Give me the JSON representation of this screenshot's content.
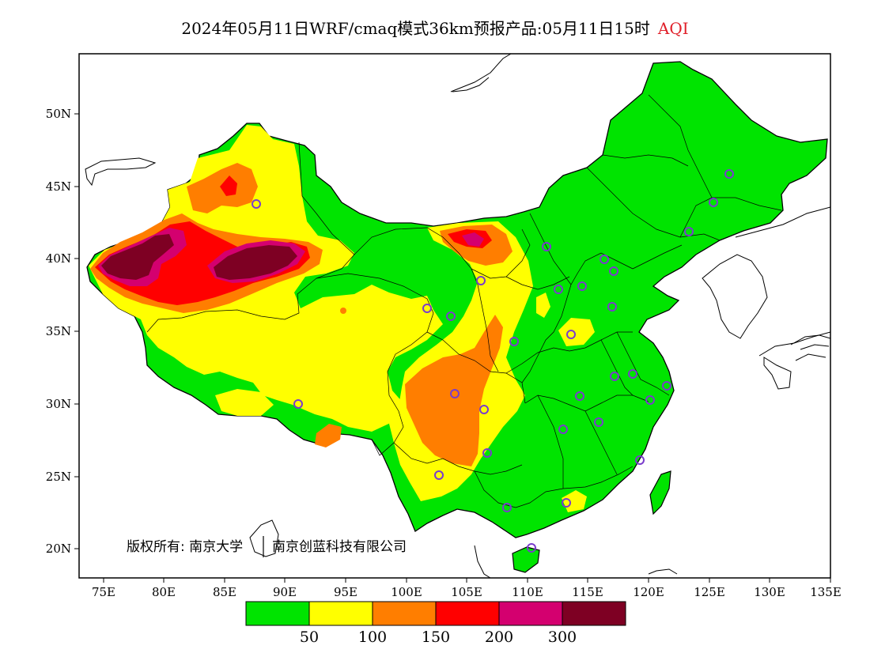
{
  "title": {
    "main": "2024年05月11日WRF/cmaq模式36km预报产品:05月11日15时",
    "variable": "AQI"
  },
  "axes": {
    "lat_labels": [
      "50N",
      "45N",
      "40N",
      "35N",
      "30N",
      "25N",
      "20N"
    ],
    "lon_labels": [
      "75E",
      "80E",
      "85E",
      "90E",
      "95E",
      "100E",
      "105E",
      "110E",
      "115E",
      "120E",
      "125E",
      "130E",
      "135E"
    ],
    "lat_range": [
      18,
      54
    ],
    "lon_range": [
      73,
      135
    ]
  },
  "copyright": {
    "left": "版权所有: 南京大学",
    "right": "南京创蓝科技有限公司"
  },
  "colorbar": {
    "colors": [
      "#00e400",
      "#ffff00",
      "#ff7e00",
      "#ff0000",
      "#d4006f",
      "#7e0023"
    ],
    "labels": [
      "50",
      "100",
      "150",
      "200",
      "300"
    ]
  },
  "colors": {
    "good": "#00e400",
    "moderate": "#ffff00",
    "sensitive": "#ff7e00",
    "unhealthy": "#ff0000",
    "very_unhealthy": "#d4006f",
    "hazardous": "#7e0023",
    "station_marker": "#7a3ccc"
  }
}
